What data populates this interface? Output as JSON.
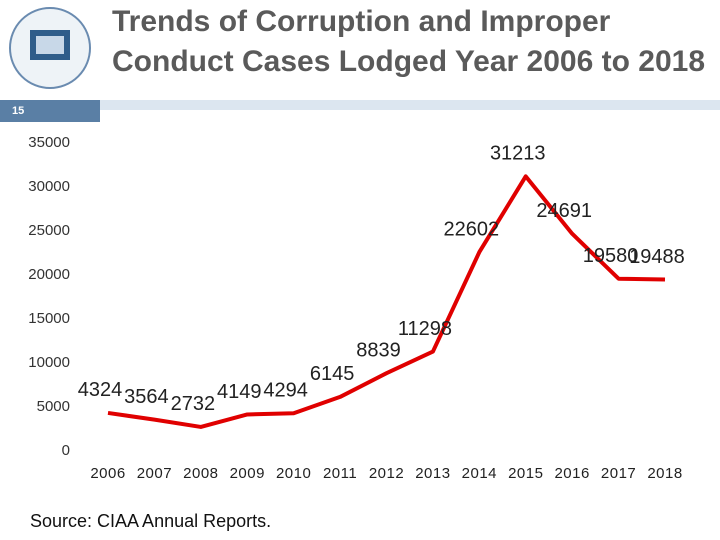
{
  "slide_number": "15",
  "chart_data": {
    "type": "line",
    "title": "Trends of Corruption and Improper Conduct Cases Lodged Year 2006 to 2018",
    "categories": [
      "2006",
      "2007",
      "2008",
      "2009",
      "2010",
      "2011",
      "2012",
      "2013",
      "2014",
      "2015",
      "2016",
      "2017",
      "2018"
    ],
    "values": [
      4324,
      3564,
      2732,
      4149,
      4294,
      6145,
      8839,
      11298,
      22602,
      31213,
      24691,
      19580,
      19488
    ],
    "color": "#e00000",
    "ylim": [
      0,
      35000
    ],
    "yticks": [
      0,
      5000,
      10000,
      15000,
      20000,
      25000,
      30000,
      35000
    ],
    "grid": false
  },
  "source": "Source: CIAA Annual Reports."
}
